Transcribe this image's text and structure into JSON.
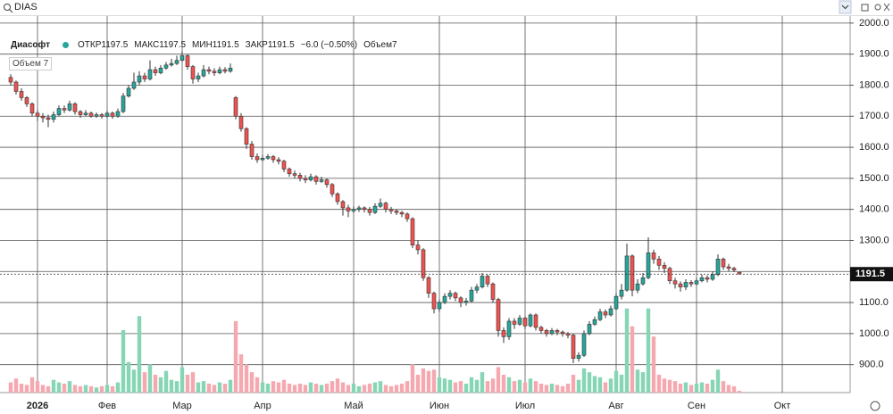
{
  "chart_data": {
    "type": "candlestick",
    "symbol": "DIAS",
    "name": "Диасофт",
    "ohlc_labels": [
      "ОТКР1197.5",
      "МАКС1197.5",
      "МИН1191.5",
      "ЗАКР1191.5",
      "−6.0 (−0.50%)",
      "Объем7"
    ],
    "volume_pane_label": "Объем 7",
    "categories": [
      null,
      null,
      null,
      null,
      null,
      "2026",
      null,
      null,
      null,
      null,
      null,
      null,
      null,
      null,
      null,
      null,
      null,
      null,
      "Фев",
      null,
      null,
      null,
      null,
      null,
      null,
      null,
      null,
      null,
      null,
      null,
      null,
      null,
      "Мар",
      null,
      null,
      null,
      null,
      null,
      null,
      null,
      null,
      null,
      null,
      null,
      null,
      null,
      null,
      "Апр",
      null,
      null,
      null,
      null,
      null,
      null,
      null,
      null,
      null,
      null,
      null,
      null,
      null,
      null,
      null,
      null,
      "Май",
      null,
      null,
      null,
      null,
      null,
      null,
      null,
      null,
      null,
      null,
      null,
      null,
      null,
      null,
      null,
      "Июн",
      null,
      null,
      null,
      null,
      null,
      null,
      null,
      null,
      null,
      null,
      null,
      null,
      null,
      null,
      null,
      "Июл",
      null,
      null,
      null,
      null,
      null,
      null,
      null,
      null,
      null,
      null,
      null,
      null,
      null,
      null,
      null,
      null,
      "Авг",
      null,
      null,
      null,
      null,
      null,
      null,
      null,
      null,
      null,
      null,
      null,
      null,
      null,
      null,
      "Сен",
      null,
      null,
      null,
      null,
      null,
      null,
      null,
      null,
      null,
      null,
      null,
      null,
      null,
      null,
      null,
      "Окт",
      null
    ],
    "open": [
      1825,
      1810,
      1780,
      1760,
      1740,
      1710,
      1700,
      1695,
      1690,
      1705,
      1725,
      1720,
      1740,
      1715,
      1705,
      1710,
      1700,
      1705,
      1700,
      1710,
      1700,
      1715,
      1765,
      1790,
      1810,
      1830,
      1820,
      1850,
      1840,
      1855,
      1865,
      1870,
      1880,
      1895,
      1860,
      1820,
      1830,
      1850,
      1845,
      1840,
      1850,
      1845,
      1760,
      1700,
      1660,
      1610,
      1570,
      1560,
      1565,
      1570,
      1560,
      1555,
      1530,
      1515,
      1510,
      1500,
      1495,
      1505,
      1490,
      1495,
      1480,
      1450,
      1425,
      1405,
      1395,
      1400,
      1405,
      1400,
      1390,
      1410,
      1420,
      1400,
      1395,
      1390,
      1385,
      1370,
      1285,
      1270,
      1180,
      1130,
      1080,
      1100,
      1120,
      1130,
      1115,
      1100,
      1105,
      1140,
      1150,
      1185,
      1160,
      1110,
      1010,
      990,
      1040,
      1030,
      1050,
      1025,
      1060,
      1020,
      1010,
      1000,
      1010,
      1005,
      1000,
      995,
      920,
      930,
      1000,
      1030,
      1045,
      1070,
      1060,
      1080,
      1120,
      1140,
      1250,
      1140,
      1160,
      1180,
      1260,
      1240,
      1220,
      1210,
      1170,
      1160,
      1150,
      1165,
      1160,
      1170,
      1180,
      1175,
      1190,
      1240,
      1215,
      1210,
      1197.5,
      null,
      null,
      null,
      null,
      null,
      null,
      null,
      null,
      null
    ],
    "high": [
      1835,
      1815,
      1790,
      1765,
      1745,
      1720,
      1710,
      1705,
      1715,
      1735,
      1735,
      1750,
      1745,
      1720,
      1720,
      1715,
      1712,
      1710,
      1718,
      1715,
      1725,
      1775,
      1800,
      1840,
      1845,
      1840,
      1880,
      1860,
      1865,
      1875,
      1885,
      1895,
      1910,
      1900,
      1865,
      1840,
      1865,
      1860,
      1855,
      1860,
      1858,
      1870,
      1765,
      1710,
      1665,
      1620,
      1580,
      1575,
      1578,
      1575,
      1568,
      1560,
      1535,
      1525,
      1518,
      1510,
      1515,
      1510,
      1505,
      1500,
      1485,
      1455,
      1430,
      1415,
      1410,
      1412,
      1410,
      1408,
      1420,
      1435,
      1425,
      1408,
      1400,
      1395,
      1390,
      1375,
      1300,
      1275,
      1185,
      1135,
      1110,
      1130,
      1140,
      1135,
      1120,
      1115,
      1150,
      1160,
      1195,
      1190,
      1165,
      1115,
      1020,
      1050,
      1050,
      1060,
      1055,
      1065,
      1065,
      1025,
      1015,
      1018,
      1015,
      1010,
      1005,
      1000,
      940,
      1010,
      1040,
      1055,
      1080,
      1078,
      1090,
      1130,
      1160,
      1290,
      1255,
      1175,
      1195,
      1310,
      1270,
      1250,
      1230,
      1215,
      1180,
      1168,
      1175,
      1172,
      1180,
      1190,
      1188,
      1200,
      1255,
      1245,
      1225,
      1215,
      1197.5,
      null,
      null,
      null,
      null,
      null,
      null,
      null,
      null,
      null
    ],
    "low": [
      1800,
      1770,
      1750,
      1730,
      1700,
      1685,
      1680,
      1665,
      1680,
      1700,
      1710,
      1715,
      1705,
      1695,
      1700,
      1695,
      1695,
      1692,
      1695,
      1692,
      1695,
      1710,
      1760,
      1785,
      1800,
      1810,
      1815,
      1830,
      1835,
      1850,
      1860,
      1865,
      1875,
      1850,
      1805,
      1810,
      1825,
      1835,
      1830,
      1835,
      1838,
      1840,
      1690,
      1650,
      1595,
      1560,
      1550,
      1555,
      1560,
      1550,
      1545,
      1520,
      1505,
      1500,
      1490,
      1485,
      1490,
      1480,
      1485,
      1470,
      1440,
      1415,
      1380,
      1375,
      1388,
      1392,
      1390,
      1380,
      1385,
      1405,
      1390,
      1385,
      1382,
      1375,
      1360,
      1275,
      1255,
      1170,
      1115,
      1065,
      1070,
      1095,
      1110,
      1105,
      1085,
      1090,
      1100,
      1130,
      1145,
      1150,
      1100,
      990,
      970,
      980,
      1015,
      1025,
      1015,
      1020,
      1010,
      1000,
      990,
      995,
      995,
      990,
      985,
      905,
      910,
      925,
      995,
      1025,
      1040,
      1050,
      1055,
      1075,
      1110,
      1135,
      1120,
      1130,
      1155,
      1175,
      1225,
      1205,
      1195,
      1160,
      1145,
      1135,
      1140,
      1150,
      1155,
      1165,
      1165,
      1170,
      1185,
      1205,
      1200,
      1198,
      1191.5,
      null,
      null,
      null,
      null,
      null,
      null,
      null,
      null,
      null
    ],
    "close": [
      1810,
      1780,
      1760,
      1740,
      1710,
      1700,
      1695,
      1690,
      1705,
      1725,
      1720,
      1740,
      1715,
      1705,
      1710,
      1700,
      1705,
      1700,
      1710,
      1700,
      1715,
      1765,
      1790,
      1810,
      1830,
      1820,
      1850,
      1840,
      1855,
      1865,
      1870,
      1880,
      1895,
      1860,
      1820,
      1830,
      1850,
      1845,
      1840,
      1850,
      1845,
      1855,
      1700,
      1660,
      1610,
      1570,
      1560,
      1565,
      1570,
      1560,
      1555,
      1530,
      1515,
      1510,
      1500,
      1495,
      1505,
      1490,
      1495,
      1480,
      1450,
      1425,
      1405,
      1395,
      1400,
      1405,
      1400,
      1390,
      1410,
      1420,
      1400,
      1395,
      1390,
      1385,
      1370,
      1285,
      1270,
      1180,
      1130,
      1080,
      1100,
      1120,
      1130,
      1115,
      1100,
      1105,
      1140,
      1150,
      1185,
      1160,
      1110,
      1010,
      990,
      1040,
      1030,
      1050,
      1025,
      1060,
      1020,
      1010,
      1000,
      1010,
      1005,
      1000,
      995,
      920,
      930,
      1000,
      1030,
      1045,
      1070,
      1060,
      1080,
      1120,
      1140,
      1250,
      1140,
      1160,
      1180,
      1260,
      1240,
      1220,
      1210,
      1170,
      1160,
      1150,
      1165,
      1160,
      1170,
      1180,
      1175,
      1190,
      1240,
      1215,
      1210,
      1205,
      1191.5,
      null,
      null,
      null,
      null,
      null,
      null,
      null,
      null,
      null
    ],
    "volume": [
      40,
      55,
      35,
      30,
      60,
      45,
      30,
      25,
      50,
      40,
      35,
      45,
      30,
      25,
      30,
      25,
      20,
      25,
      30,
      25,
      40,
      245,
      120,
      90,
      300,
      80,
      110,
      70,
      60,
      85,
      50,
      45,
      100,
      70,
      80,
      40,
      45,
      35,
      30,
      40,
      35,
      50,
      280,
      150,
      110,
      80,
      60,
      40,
      35,
      45,
      40,
      50,
      35,
      30,
      35,
      30,
      40,
      35,
      30,
      35,
      45,
      55,
      40,
      30,
      35,
      25,
      30,
      35,
      40,
      45,
      30,
      25,
      30,
      35,
      45,
      110,
      70,
      95,
      85,
      90,
      60,
      55,
      50,
      40,
      45,
      35,
      60,
      50,
      80,
      45,
      55,
      100,
      70,
      60,
      45,
      50,
      40,
      55,
      45,
      35,
      30,
      35,
      30,
      25,
      35,
      70,
      50,
      95,
      80,
      65,
      60,
      40,
      55,
      85,
      70,
      330,
      260,
      90,
      80,
      330,
      220,
      70,
      55,
      50,
      45,
      35,
      40,
      30,
      35,
      40,
      35,
      50,
      90,
      45,
      30,
      25,
      7,
      null,
      null,
      null,
      null,
      null,
      null,
      null,
      null,
      null
    ],
    "ylim": [
      810,
      2060
    ],
    "yticks": [
      {
        "value": 900,
        "label": "900.0"
      },
      {
        "value": 1000,
        "label": "1000.0"
      },
      {
        "value": 1100,
        "label": "1100.0"
      },
      {
        "value": 1200,
        "label": "1200.0"
      },
      {
        "value": 1300,
        "label": "1300.0"
      },
      {
        "value": 1400,
        "label": "1400.0"
      },
      {
        "value": 1500,
        "label": "1500.0"
      },
      {
        "value": 1600,
        "label": "1600.0"
      },
      {
        "value": 1700,
        "label": "1700.0"
      },
      {
        "value": 1800,
        "label": "1800.0"
      },
      {
        "value": 1900,
        "label": "1900.0"
      },
      {
        "value": 2000,
        "label": "2000.0"
      }
    ],
    "vlim": [
      0,
      350
    ],
    "last_price": 1191.5,
    "grid": true,
    "up_color": "#26a69a",
    "down_color": "#ef5350",
    "volume_up_color": "#86d6b6",
    "volume_down_color": "#f5a8b0"
  }
}
